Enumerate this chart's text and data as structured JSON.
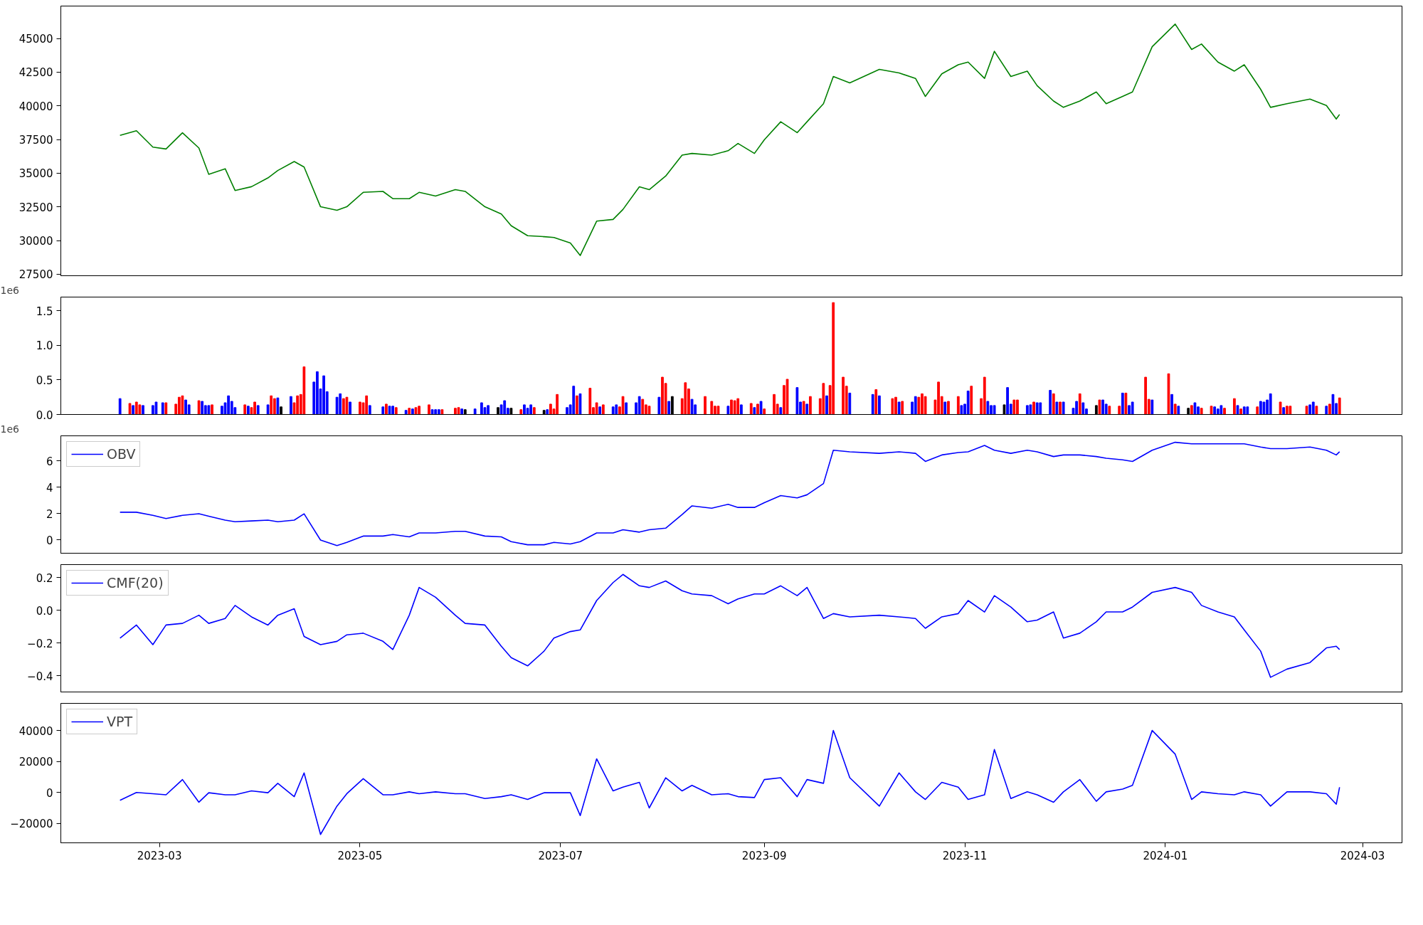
{
  "chart_data": [
    {
      "type": "line",
      "xlim": [
        "2023-01-30",
        "2024-03-13"
      ],
      "ylim": [
        27390,
        47410
      ],
      "yticks": [
        27500,
        30000,
        32500,
        35000,
        37500,
        40000,
        42500,
        45000
      ],
      "tick_labels": "y",
      "x": [
        "2023-02-17",
        "2023-02-22",
        "2023-02-27",
        "2023-03-03",
        "2023-03-08",
        "2023-03-13",
        "2023-03-16",
        "2023-03-21",
        "2023-03-24",
        "2023-03-29",
        "2023-04-03",
        "2023-04-06",
        "2023-04-11",
        "2023-04-14",
        "2023-04-19",
        "2023-04-24",
        "2023-04-27",
        "2023-05-02",
        "2023-05-08",
        "2023-05-11",
        "2023-05-16",
        "2023-05-19",
        "2023-05-24",
        "2023-05-30",
        "2023-06-02",
        "2023-06-08",
        "2023-06-13",
        "2023-06-16",
        "2023-06-21",
        "2023-06-26",
        "2023-06-29",
        "2023-07-04",
        "2023-07-07",
        "2023-07-12",
        "2023-07-17",
        "2023-07-20",
        "2023-07-25",
        "2023-07-28",
        "2023-08-02",
        "2023-08-07",
        "2023-08-10",
        "2023-08-16",
        "2023-08-21",
        "2023-08-24",
        "2023-08-29",
        "2023-09-01",
        "2023-09-06",
        "2023-09-11",
        "2023-09-14",
        "2023-09-19",
        "2023-09-22",
        "2023-09-27",
        "2023-10-06",
        "2023-10-12",
        "2023-10-17",
        "2023-10-20",
        "2023-10-25",
        "2023-10-30",
        "2023-11-02",
        "2023-11-07",
        "2023-11-10",
        "2023-11-15",
        "2023-11-20",
        "2023-11-23",
        "2023-11-28",
        "2023-12-01",
        "2023-12-06",
        "2023-12-11",
        "2023-12-14",
        "2023-12-19",
        "2023-12-22",
        "2023-12-28",
        "2024-01-04",
        "2024-01-09",
        "2024-01-12",
        "2024-01-17",
        "2024-01-22",
        "2024-01-25",
        "2024-01-30",
        "2024-02-02",
        "2024-02-07",
        "2024-02-14",
        "2024-02-19",
        "2024-02-22",
        "2024-02-23"
      ],
      "series": [
        {
          "color": "#008000",
          "values": [
            37810,
            38150,
            36940,
            36800,
            38000,
            36870,
            34920,
            35330,
            33720,
            34000,
            34650,
            35200,
            35870,
            35460,
            32510,
            32250,
            32510,
            33580,
            33650,
            33110,
            33110,
            33580,
            33310,
            33780,
            33650,
            32510,
            31970,
            31100,
            30360,
            30290,
            30230,
            29820,
            28890,
            31440,
            31570,
            32310,
            33990,
            33780,
            34790,
            36340,
            36470,
            36340,
            36670,
            37210,
            36470,
            37480,
            38820,
            38010,
            38820,
            40160,
            42180,
            41710,
            42710,
            42440,
            42040,
            40700,
            42380,
            43050,
            43250,
            42040,
            44050,
            42180,
            42580,
            41500,
            40360,
            39890,
            40360,
            41030,
            40160,
            40700,
            41030,
            44390,
            46070,
            44190,
            44590,
            43250,
            42580,
            43050,
            41230,
            39890,
            40160,
            40500,
            40030,
            39020,
            39360
          ]
        }
      ]
    },
    {
      "type": "bar",
      "xlim": [
        "2023-01-30",
        "2024-03-13"
      ],
      "ylim": [
        0,
        1.7
      ],
      "yticks": [
        {
          "value": 0,
          "label": "0.0"
        },
        {
          "value": 0.5,
          "label": "0.5"
        },
        {
          "value": 1.0,
          "label": "1.0"
        },
        {
          "value": 1.5,
          "label": "1.5"
        }
      ],
      "tick_labels": "y",
      "annotations": [
        "1e6"
      ],
      "x": [
        "2023-02-17",
        "2023-02-20",
        "2023-02-21",
        "2023-02-22",
        "2023-02-23",
        "2023-02-24",
        "2023-02-27",
        "2023-02-28",
        "2023-03-02",
        "2023-03-03",
        "2023-03-06",
        "2023-03-07",
        "2023-03-08",
        "2023-03-09",
        "2023-03-10",
        "2023-03-13",
        "2023-03-14",
        "2023-03-15",
        "2023-03-16",
        "2023-03-17",
        "2023-03-20",
        "2023-03-21",
        "2023-03-22",
        "2023-03-23",
        "2023-03-24",
        "2023-03-27",
        "2023-03-28",
        "2023-03-29",
        "2023-03-30",
        "2023-03-31",
        "2023-04-03",
        "2023-04-04",
        "2023-04-05",
        "2023-04-06",
        "2023-04-07",
        "2023-04-10",
        "2023-04-11",
        "2023-04-12",
        "2023-04-13",
        "2023-04-14",
        "2023-04-17",
        "2023-04-18",
        "2023-04-19",
        "2023-04-20",
        "2023-04-21",
        "2023-04-24",
        "2023-04-25",
        "2023-04-26",
        "2023-04-27",
        "2023-04-28",
        "2023-05-01",
        "2023-05-02",
        "2023-05-03",
        "2023-05-04",
        "2023-05-08",
        "2023-05-09",
        "2023-05-10",
        "2023-05-11",
        "2023-05-12",
        "2023-05-15",
        "2023-05-16",
        "2023-05-17",
        "2023-05-18",
        "2023-05-19",
        "2023-05-22",
        "2023-05-23",
        "2023-05-24",
        "2023-05-25",
        "2023-05-26",
        "2023-05-30",
        "2023-05-31",
        "2023-06-01",
        "2023-06-02",
        "2023-06-05",
        "2023-06-07",
        "2023-06-08",
        "2023-06-09",
        "2023-06-12",
        "2023-06-13",
        "2023-06-14",
        "2023-06-15",
        "2023-06-16",
        "2023-06-19",
        "2023-06-20",
        "2023-06-21",
        "2023-06-22",
        "2023-06-23",
        "2023-06-26",
        "2023-06-27",
        "2023-06-28",
        "2023-06-29",
        "2023-06-30",
        "2023-07-03",
        "2023-07-04",
        "2023-07-05",
        "2023-07-06",
        "2023-07-07",
        "2023-07-10",
        "2023-07-11",
        "2023-07-12",
        "2023-07-13",
        "2023-07-14",
        "2023-07-17",
        "2023-07-18",
        "2023-07-19",
        "2023-07-20",
        "2023-07-21",
        "2023-07-24",
        "2023-07-25",
        "2023-07-26",
        "2023-07-27",
        "2023-07-28",
        "2023-07-31",
        "2023-08-01",
        "2023-08-02",
        "2023-08-03",
        "2023-08-04",
        "2023-08-07",
        "2023-08-08",
        "2023-08-09",
        "2023-08-10",
        "2023-08-11",
        "2023-08-14",
        "2023-08-16",
        "2023-08-17",
        "2023-08-18",
        "2023-08-21",
        "2023-08-22",
        "2023-08-23",
        "2023-08-24",
        "2023-08-25",
        "2023-08-28",
        "2023-08-29",
        "2023-08-30",
        "2023-08-31",
        "2023-09-01",
        "2023-09-04",
        "2023-09-05",
        "2023-09-06",
        "2023-09-07",
        "2023-09-08",
        "2023-09-11",
        "2023-09-12",
        "2023-09-13",
        "2023-09-14",
        "2023-09-15",
        "2023-09-18",
        "2023-09-19",
        "2023-09-20",
        "2023-09-21",
        "2023-09-22",
        "2023-09-25",
        "2023-09-26",
        "2023-09-27",
        "2023-10-04",
        "2023-10-05",
        "2023-10-06",
        "2023-10-10",
        "2023-10-11",
        "2023-10-12",
        "2023-10-13",
        "2023-10-16",
        "2023-10-17",
        "2023-10-18",
        "2023-10-19",
        "2023-10-20",
        "2023-10-23",
        "2023-10-24",
        "2023-10-25",
        "2023-10-26",
        "2023-10-27",
        "2023-10-30",
        "2023-10-31",
        "2023-11-01",
        "2023-11-02",
        "2023-11-03",
        "2023-11-06",
        "2023-11-07",
        "2023-11-08",
        "2023-11-09",
        "2023-11-10",
        "2023-11-13",
        "2023-11-14",
        "2023-11-15",
        "2023-11-16",
        "2023-11-17",
        "2023-11-20",
        "2023-11-21",
        "2023-11-22",
        "2023-11-23",
        "2023-11-24",
        "2023-11-27",
        "2023-11-28",
        "2023-11-29",
        "2023-11-30",
        "2023-12-01",
        "2023-12-04",
        "2023-12-05",
        "2023-12-06",
        "2023-12-07",
        "2023-12-08",
        "2023-12-11",
        "2023-12-12",
        "2023-12-13",
        "2023-12-14",
        "2023-12-15",
        "2023-12-18",
        "2023-12-19",
        "2023-12-20",
        "2023-12-21",
        "2023-12-22",
        "2023-12-26",
        "2023-12-27",
        "2023-12-28",
        "2024-01-02",
        "2024-01-03",
        "2024-01-04",
        "2024-01-05",
        "2024-01-08",
        "2024-01-09",
        "2024-01-10",
        "2024-01-11",
        "2024-01-12",
        "2024-01-15",
        "2024-01-16",
        "2024-01-17",
        "2024-01-18",
        "2024-01-19",
        "2024-01-22",
        "2024-01-23",
        "2024-01-24",
        "2024-01-25",
        "2024-01-26",
        "2024-01-29",
        "2024-01-30",
        "2024-01-31",
        "2024-02-01",
        "2024-02-02",
        "2024-02-05",
        "2024-02-06",
        "2024-02-07",
        "2024-02-08",
        "2024-02-13",
        "2024-02-14",
        "2024-02-15",
        "2024-02-16",
        "2024-02-19",
        "2024-02-20",
        "2024-02-21",
        "2024-02-22",
        "2024-02-23"
      ],
      "values": [
        0.23,
        0.16,
        0.13,
        0.18,
        0.14,
        0.13,
        0.13,
        0.18,
        0.17,
        0.17,
        0.15,
        0.25,
        0.27,
        0.21,
        0.14,
        0.2,
        0.19,
        0.13,
        0.13,
        0.14,
        0.12,
        0.17,
        0.27,
        0.19,
        0.1,
        0.14,
        0.12,
        0.1,
        0.18,
        0.13,
        0.14,
        0.27,
        0.23,
        0.24,
        0.11,
        0.26,
        0.17,
        0.27,
        0.29,
        0.69,
        0.47,
        0.62,
        0.37,
        0.56,
        0.33,
        0.25,
        0.3,
        0.23,
        0.25,
        0.18,
        0.18,
        0.17,
        0.27,
        0.13,
        0.11,
        0.15,
        0.12,
        0.12,
        0.1,
        0.06,
        0.09,
        0.08,
        0.1,
        0.12,
        0.14,
        0.07,
        0.07,
        0.07,
        0.07,
        0.09,
        0.1,
        0.08,
        0.07,
        0.08,
        0.17,
        0.1,
        0.13,
        0.1,
        0.14,
        0.2,
        0.09,
        0.09,
        0.07,
        0.14,
        0.09,
        0.14,
        0.1,
        0.06,
        0.07,
        0.15,
        0.08,
        0.29,
        0.1,
        0.14,
        0.41,
        0.27,
        0.3,
        0.38,
        0.1,
        0.17,
        0.11,
        0.14,
        0.11,
        0.14,
        0.11,
        0.26,
        0.17,
        0.17,
        0.26,
        0.22,
        0.14,
        0.12,
        0.25,
        0.54,
        0.45,
        0.19,
        0.26,
        0.23,
        0.46,
        0.37,
        0.22,
        0.14,
        0.26,
        0.19,
        0.12,
        0.12,
        0.12,
        0.21,
        0.2,
        0.23,
        0.14,
        0.16,
        0.1,
        0.15,
        0.19,
        0.08,
        0.29,
        0.15,
        0.1,
        0.42,
        0.51,
        0.39,
        0.18,
        0.19,
        0.15,
        0.26,
        0.23,
        0.45,
        0.27,
        0.42,
        1.62,
        0.54,
        0.41,
        0.31,
        0.29,
        0.36,
        0.27,
        0.23,
        0.25,
        0.18,
        0.19,
        0.18,
        0.26,
        0.25,
        0.3,
        0.26,
        0.21,
        0.47,
        0.26,
        0.18,
        0.19,
        0.26,
        0.13,
        0.15,
        0.34,
        0.41,
        0.23,
        0.54,
        0.19,
        0.13,
        0.13,
        0.14,
        0.39,
        0.15,
        0.21,
        0.21,
        0.13,
        0.14,
        0.18,
        0.17,
        0.17,
        0.35,
        0.3,
        0.18,
        0.18,
        0.18,
        0.09,
        0.19,
        0.3,
        0.17,
        0.08,
        0.13,
        0.21,
        0.21,
        0.15,
        0.12,
        0.12,
        0.31,
        0.31,
        0.13,
        0.18,
        0.54,
        0.22,
        0.21,
        0.59,
        0.29,
        0.15,
        0.12,
        0.09,
        0.13,
        0.17,
        0.11,
        0.09,
        0.12,
        0.11,
        0.08,
        0.13,
        0.09,
        0.23,
        0.13,
        0.08,
        0.11,
        0.11,
        0.11,
        0.19,
        0.18,
        0.21,
        0.3,
        0.18,
        0.1,
        0.12,
        0.12,
        0.12,
        0.14,
        0.18,
        0.12,
        0.12,
        0.15,
        0.29,
        0.16,
        0.24
      ],
      "colors": [
        "#0000ff",
        "#ff0000",
        "#0000ff",
        "#ff0000",
        "#ff0000",
        "#0000ff",
        "#0000ff",
        "#0000ff",
        "#0000ff",
        "#ff0000",
        "#ff0000",
        "#ff0000",
        "#ff0000",
        "#0000ff",
        "#0000ff",
        "#ff0000",
        "#0000ff",
        "#0000ff",
        "#0000ff",
        "#ff0000",
        "#0000ff",
        "#0000ff",
        "#0000ff",
        "#0000ff",
        "#0000ff",
        "#ff0000",
        "#0000ff",
        "#ff0000",
        "#ff0000",
        "#0000ff",
        "#0000ff",
        "#ff0000",
        "#ff0000",
        "#0000ff",
        "#000000",
        "#0000ff",
        "#ff0000",
        "#ff0000",
        "#ff0000",
        "#ff0000",
        "#0000ff",
        "#0000ff",
        "#0000ff",
        "#0000ff",
        "#0000ff",
        "#0000ff",
        "#0000ff",
        "#ff0000",
        "#ff0000",
        "#0000ff",
        "#ff0000",
        "#ff0000",
        "#ff0000",
        "#0000ff",
        "#0000ff",
        "#ff0000",
        "#0000ff",
        "#0000ff",
        "#ff0000",
        "#0000ff",
        "#ff0000",
        "#0000ff",
        "#ff0000",
        "#ff0000",
        "#ff0000",
        "#0000ff",
        "#0000ff",
        "#0000ff",
        "#ff0000",
        "#ff0000",
        "#ff0000",
        "#0000ff",
        "#000000",
        "#0000ff",
        "#0000ff",
        "#0000ff",
        "#0000ff",
        "#000000",
        "#0000ff",
        "#0000ff",
        "#0000ff",
        "#000000",
        "#ff0000",
        "#0000ff",
        "#0000ff",
        "#0000ff",
        "#ff0000",
        "#000000",
        "#0000ff",
        "#ff0000",
        "#ff0000",
        "#ff0000",
        "#0000ff",
        "#0000ff",
        "#0000ff",
        "#ff0000",
        "#0000ff",
        "#ff0000",
        "#ff0000",
        "#ff0000",
        "#0000ff",
        "#ff0000",
        "#0000ff",
        "#0000ff",
        "#ff0000",
        "#ff0000",
        "#0000ff",
        "#0000ff",
        "#0000ff",
        "#ff0000",
        "#ff0000",
        "#ff0000",
        "#0000ff",
        "#ff0000",
        "#ff0000",
        "#0000ff",
        "#000000",
        "#ff0000",
        "#ff0000",
        "#ff0000",
        "#0000ff",
        "#0000ff",
        "#ff0000",
        "#ff0000",
        "#ff0000",
        "#ff0000",
        "#0000ff",
        "#ff0000",
        "#ff0000",
        "#ff0000",
        "#0000ff",
        "#ff0000",
        "#0000ff",
        "#ff0000",
        "#0000ff",
        "#ff0000",
        "#ff0000",
        "#ff0000",
        "#0000ff",
        "#ff0000",
        "#ff0000",
        "#0000ff",
        "#0000ff",
        "#ff0000",
        "#0000ff",
        "#ff0000",
        "#ff0000",
        "#ff0000",
        "#0000ff",
        "#ff0000",
        "#ff0000",
        "#ff0000",
        "#ff0000",
        "#0000ff",
        "#0000ff",
        "#ff0000",
        "#0000ff",
        "#ff0000",
        "#ff0000",
        "#0000ff",
        "#ff0000",
        "#0000ff",
        "#0000ff",
        "#ff0000",
        "#ff0000",
        "#ff0000",
        "#ff0000",
        "#ff0000",
        "#ff0000",
        "#0000ff",
        "#ff0000",
        "#ff0000",
        "#0000ff",
        "#0000ff",
        "#0000ff",
        "#ff0000",
        "#ff0000",
        "#ff0000",
        "#0000ff",
        "#0000ff",
        "#0000ff",
        "#000000",
        "#0000ff",
        "#0000ff",
        "#ff0000",
        "#ff0000",
        "#0000ff",
        "#0000ff",
        "#ff0000",
        "#0000ff",
        "#0000ff",
        "#0000ff",
        "#ff0000",
        "#0000ff",
        "#ff0000",
        "#0000ff",
        "#0000ff",
        "#0000ff",
        "#ff0000",
        "#0000ff",
        "#0000ff",
        "#000000",
        "#ff0000",
        "#0000ff",
        "#0000ff",
        "#ff0000",
        "#ff0000",
        "#0000ff",
        "#ff0000",
        "#0000ff",
        "#0000ff",
        "#ff0000",
        "#ff0000",
        "#0000ff",
        "#ff0000",
        "#0000ff",
        "#ff0000",
        "#0000ff",
        "#000000",
        "#ff0000",
        "#0000ff",
        "#0000ff",
        "#ff0000",
        "#ff0000",
        "#0000ff",
        "#0000ff",
        "#0000ff",
        "#ff0000",
        "#ff0000",
        "#0000ff",
        "#ff0000",
        "#0000ff",
        "#0000ff",
        "#ff0000",
        "#0000ff",
        "#0000ff",
        "#0000ff",
        "#0000ff",
        "#ff0000",
        "#0000ff",
        "#ff0000",
        "#ff0000",
        "#ff0000",
        "#0000ff",
        "#0000ff",
        "#ff0000",
        "#0000ff",
        "#ff0000",
        "#0000ff",
        "#0000ff",
        "#ff0000"
      ]
    },
    {
      "type": "line",
      "xlim": [
        "2023-01-30",
        "2024-03-13"
      ],
      "ylim": [
        -1.0,
        7.9
      ],
      "yticks": [
        0,
        2,
        4,
        6
      ],
      "tick_labels": "y",
      "annotations": [
        "1e6"
      ],
      "legend": "top left",
      "x": [
        "2023-02-17",
        "2023-02-22",
        "2023-02-27",
        "2023-03-03",
        "2023-03-08",
        "2023-03-13",
        "2023-03-16",
        "2023-03-21",
        "2023-03-24",
        "2023-03-29",
        "2023-04-03",
        "2023-04-06",
        "2023-04-11",
        "2023-04-14",
        "2023-04-19",
        "2023-04-24",
        "2023-04-27",
        "2023-05-02",
        "2023-05-08",
        "2023-05-11",
        "2023-05-16",
        "2023-05-19",
        "2023-05-24",
        "2023-05-30",
        "2023-06-02",
        "2023-06-08",
        "2023-06-13",
        "2023-06-16",
        "2023-06-21",
        "2023-06-26",
        "2023-06-29",
        "2023-07-04",
        "2023-07-07",
        "2023-07-12",
        "2023-07-17",
        "2023-07-20",
        "2023-07-25",
        "2023-07-28",
        "2023-08-02",
        "2023-08-07",
        "2023-08-10",
        "2023-08-16",
        "2023-08-21",
        "2023-08-24",
        "2023-08-29",
        "2023-09-01",
        "2023-09-06",
        "2023-09-11",
        "2023-09-14",
        "2023-09-19",
        "2023-09-22",
        "2023-09-27",
        "2023-10-06",
        "2023-10-12",
        "2023-10-17",
        "2023-10-20",
        "2023-10-25",
        "2023-10-30",
        "2023-11-02",
        "2023-11-07",
        "2023-11-10",
        "2023-11-15",
        "2023-11-20",
        "2023-11-23",
        "2023-11-28",
        "2023-12-01",
        "2023-12-06",
        "2023-12-11",
        "2023-12-14",
        "2023-12-19",
        "2023-12-22",
        "2023-12-28",
        "2024-01-04",
        "2024-01-09",
        "2024-01-12",
        "2024-01-17",
        "2024-01-22",
        "2024-01-25",
        "2024-01-30",
        "2024-02-02",
        "2024-02-07",
        "2024-02-14",
        "2024-02-19",
        "2024-02-22",
        "2024-02-23"
      ],
      "series": [
        {
          "name": "OBV",
          "color": "#0000ff",
          "values": [
            2.11,
            2.11,
            1.87,
            1.63,
            1.87,
            1.99,
            1.81,
            1.51,
            1.39,
            1.45,
            1.51,
            1.39,
            1.51,
            1.99,
            0.0,
            -0.42,
            -0.18,
            0.3,
            0.3,
            0.42,
            0.24,
            0.54,
            0.54,
            0.66,
            0.66,
            0.3,
            0.24,
            -0.12,
            -0.36,
            -0.36,
            -0.18,
            -0.3,
            -0.12,
            0.54,
            0.54,
            0.78,
            0.6,
            0.78,
            0.9,
            1.93,
            2.59,
            2.41,
            2.71,
            2.47,
            2.47,
            2.83,
            3.37,
            3.19,
            3.43,
            4.28,
            6.81,
            6.69,
            6.57,
            6.69,
            6.57,
            5.96,
            6.45,
            6.63,
            6.69,
            7.17,
            6.81,
            6.57,
            6.81,
            6.69,
            6.33,
            6.45,
            6.45,
            6.33,
            6.2,
            6.08,
            5.96,
            6.81,
            7.41,
            7.29,
            7.29,
            7.29,
            7.29,
            7.29,
            7.05,
            6.93,
            6.93,
            7.05,
            6.81,
            6.45,
            6.69
          ]
        }
      ]
    },
    {
      "type": "line",
      "xlim": [
        "2023-01-30",
        "2024-03-13"
      ],
      "ylim": [
        -0.5,
        0.28
      ],
      "yticks": [
        {
          "value": -0.4,
          "label": "−0.4"
        },
        {
          "value": -0.2,
          "label": "−0.2"
        },
        {
          "value": 0.0,
          "label": "0.0"
        },
        {
          "value": 0.2,
          "label": "0.2"
        }
      ],
      "tick_labels": "y",
      "legend": "top left",
      "x": [
        "2023-02-17",
        "2023-02-22",
        "2023-02-27",
        "2023-03-03",
        "2023-03-08",
        "2023-03-13",
        "2023-03-16",
        "2023-03-21",
        "2023-03-24",
        "2023-03-29",
        "2023-04-03",
        "2023-04-06",
        "2023-04-11",
        "2023-04-14",
        "2023-04-19",
        "2023-04-24",
        "2023-04-27",
        "2023-05-02",
        "2023-05-08",
        "2023-05-11",
        "2023-05-16",
        "2023-05-19",
        "2023-05-24",
        "2023-05-30",
        "2023-06-02",
        "2023-06-08",
        "2023-06-13",
        "2023-06-16",
        "2023-06-21",
        "2023-06-26",
        "2023-06-29",
        "2023-07-04",
        "2023-07-07",
        "2023-07-12",
        "2023-07-17",
        "2023-07-20",
        "2023-07-25",
        "2023-07-28",
        "2023-08-02",
        "2023-08-07",
        "2023-08-10",
        "2023-08-16",
        "2023-08-21",
        "2023-08-24",
        "2023-08-29",
        "2023-09-01",
        "2023-09-06",
        "2023-09-11",
        "2023-09-14",
        "2023-09-19",
        "2023-09-22",
        "2023-09-27",
        "2023-10-06",
        "2023-10-12",
        "2023-10-17",
        "2023-10-20",
        "2023-10-25",
        "2023-10-30",
        "2023-11-02",
        "2023-11-07",
        "2023-11-10",
        "2023-11-15",
        "2023-11-20",
        "2023-11-23",
        "2023-11-28",
        "2023-12-01",
        "2023-12-06",
        "2023-12-11",
        "2023-12-14",
        "2023-12-19",
        "2023-12-22",
        "2023-12-28",
        "2024-01-04",
        "2024-01-09",
        "2024-01-12",
        "2024-01-17",
        "2024-01-22",
        "2024-01-25",
        "2024-01-30",
        "2024-02-02",
        "2024-02-07",
        "2024-02-14",
        "2024-02-19",
        "2024-02-22",
        "2024-02-23"
      ],
      "series": [
        {
          "name": "CMF(20)",
          "color": "#0000ff",
          "values": [
            -0.17,
            -0.09,
            -0.21,
            -0.09,
            -0.08,
            -0.03,
            -0.08,
            -0.05,
            0.03,
            -0.04,
            -0.09,
            -0.03,
            0.01,
            -0.16,
            -0.21,
            -0.19,
            -0.15,
            -0.14,
            -0.19,
            -0.24,
            -0.03,
            0.14,
            0.08,
            -0.03,
            -0.08,
            -0.09,
            -0.22,
            -0.29,
            -0.34,
            -0.25,
            -0.17,
            -0.13,
            -0.12,
            0.06,
            0.17,
            0.22,
            0.15,
            0.14,
            0.18,
            0.12,
            0.1,
            0.09,
            0.04,
            0.07,
            0.1,
            0.1,
            0.15,
            0.09,
            0.14,
            -0.05,
            -0.02,
            -0.04,
            -0.03,
            -0.04,
            -0.05,
            -0.11,
            -0.04,
            -0.02,
            0.06,
            -0.01,
            0.09,
            0.02,
            -0.07,
            -0.06,
            -0.01,
            -0.17,
            -0.14,
            -0.07,
            -0.01,
            -0.01,
            0.02,
            0.11,
            0.14,
            0.11,
            0.03,
            -0.01,
            -0.04,
            -0.12,
            -0.25,
            -0.41,
            -0.36,
            -0.32,
            -0.23,
            -0.22,
            -0.24
          ]
        }
      ]
    },
    {
      "type": "line",
      "xlim": [
        "2023-01-30",
        "2024-03-13"
      ],
      "ylim": [
        -32500,
        57500
      ],
      "yticks": [
        {
          "value": -20000,
          "label": "−20000"
        },
        0,
        20000,
        40000
      ],
      "xticks": [
        {
          "value": "2023-03-01",
          "label": "2023-03"
        },
        {
          "value": "2023-05-01",
          "label": "2023-05"
        },
        {
          "value": "2023-07-01",
          "label": "2023-07"
        },
        {
          "value": "2023-09-01",
          "label": "2023-09"
        },
        {
          "value": "2023-11-01",
          "label": "2023-11"
        },
        {
          "value": "2024-01-01",
          "label": "2024-01"
        },
        {
          "value": "2024-03-01",
          "label": "2024-03"
        }
      ],
      "legend": "top left",
      "x": [
        "2023-02-17",
        "2023-02-22",
        "2023-02-27",
        "2023-03-03",
        "2023-03-08",
        "2023-03-13",
        "2023-03-16",
        "2023-03-21",
        "2023-03-24",
        "2023-03-29",
        "2023-04-03",
        "2023-04-06",
        "2023-04-11",
        "2023-04-14",
        "2023-04-19",
        "2023-04-24",
        "2023-04-27",
        "2023-05-02",
        "2023-05-08",
        "2023-05-11",
        "2023-05-16",
        "2023-05-19",
        "2023-05-24",
        "2023-05-30",
        "2023-06-02",
        "2023-06-08",
        "2023-06-13",
        "2023-06-16",
        "2023-06-21",
        "2023-06-26",
        "2023-06-29",
        "2023-07-04",
        "2023-07-07",
        "2023-07-12",
        "2023-07-17",
        "2023-07-20",
        "2023-07-25",
        "2023-07-28",
        "2023-08-02",
        "2023-08-07",
        "2023-08-10",
        "2023-08-16",
        "2023-08-21",
        "2023-08-24",
        "2023-08-29",
        "2023-09-01",
        "2023-09-06",
        "2023-09-11",
        "2023-09-14",
        "2023-09-19",
        "2023-09-22",
        "2023-09-27",
        "2023-10-06",
        "2023-10-12",
        "2023-10-17",
        "2023-10-20",
        "2023-10-25",
        "2023-10-30",
        "2023-11-02",
        "2023-11-07",
        "2023-11-10",
        "2023-11-15",
        "2023-11-20",
        "2023-11-23",
        "2023-11-28",
        "2023-12-01",
        "2023-12-06",
        "2023-12-11",
        "2023-12-14",
        "2023-12-19",
        "2023-12-22",
        "2023-12-28",
        "2024-01-04",
        "2024-01-09",
        "2024-01-12",
        "2024-01-17",
        "2024-01-22",
        "2024-01-25",
        "2024-01-30",
        "2024-02-02",
        "2024-02-07",
        "2024-02-14",
        "2024-02-19",
        "2024-02-22",
        "2024-02-23"
      ],
      "series": [
        {
          "name": "VPT",
          "color": "#0000ff",
          "values": [
            -5100,
            0,
            -800,
            -1500,
            8300,
            -6300,
            -200,
            -1500,
            -1500,
            1000,
            -200,
            5900,
            -2700,
            12600,
            -27100,
            -8800,
            -800,
            8900,
            -1500,
            -1500,
            400,
            -800,
            400,
            -800,
            -800,
            -3900,
            -2700,
            -1500,
            -4500,
            -200,
            -200,
            -200,
            -14900,
            21700,
            1000,
            3400,
            6500,
            -10000,
            9500,
            1000,
            4600,
            -1500,
            -800,
            -2700,
            -3300,
            8300,
            9500,
            -2700,
            8300,
            5900,
            40000,
            9500,
            -8800,
            12600,
            400,
            -4500,
            6500,
            3400,
            -4500,
            -1500,
            27700,
            -3900,
            400,
            -1500,
            -6300,
            400,
            8300,
            -5700,
            400,
            2200,
            4600,
            40000,
            24700,
            -4500,
            400,
            -800,
            -1500,
            400,
            -1500,
            -8800,
            400,
            400,
            -800,
            -7600,
            3400
          ]
        }
      ]
    }
  ]
}
